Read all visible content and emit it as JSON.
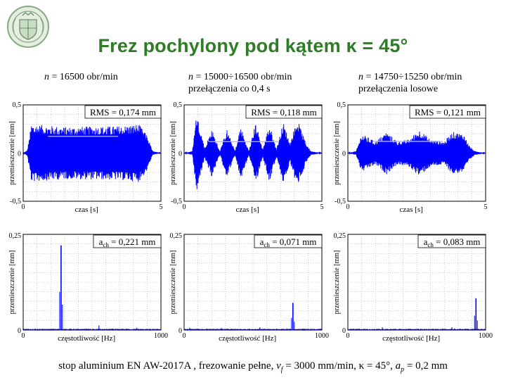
{
  "title": "Frez pochylony pod kątem κ = 45°",
  "footer": "stop aluminium EN AW-2017A , frezowanie pełne, v",
  "footer_parts": {
    "text1": "stop aluminium EN AW-2017A , frezowanie pełne, ",
    "vf_var": "v",
    "vf_sub": "f",
    "text2": " = 3000 mm/min, κ = 45°, ",
    "ap_var": "a",
    "ap_sub": "p",
    "text3": " = 0,2 mm"
  },
  "columns": [
    {
      "n_var": "n",
      "n_value": " = 16500 obr/min",
      "n_line2": ""
    },
    {
      "n_var": "n",
      "n_value": " = 15000÷16500 obr/min",
      "n_line2": "przełączenia co 0,4 s"
    },
    {
      "n_var": "n",
      "n_value": " = 14750÷15250 obr/min",
      "n_line2": "przełączenia losowe"
    }
  ],
  "colors": {
    "title": "#2e7d26",
    "signal": "#0000ff",
    "rms_line": "#b4b4dc",
    "grid": "#b0b0b0"
  },
  "chart_data": [
    {
      "type": "line",
      "panel": "time",
      "column": 1,
      "annotation": "RMS = 0,174 mm",
      "rms_value": 0.174,
      "xlabel": "czas [s]",
      "ylabel": "przemieszczenie [mm]",
      "xlim": [
        0,
        5
      ],
      "ylim": [
        -0.5,
        0.5
      ],
      "xticks": [
        "0",
        "5"
      ],
      "yticks": [
        "-0,5",
        "0",
        "0,5"
      ],
      "grid": true,
      "signal_envelope": {
        "t": [
          0,
          0.15,
          0.3,
          1.5,
          3.5,
          4.2,
          4.5,
          4.7,
          5
        ],
        "amp": [
          0,
          0.03,
          0.3,
          0.27,
          0.28,
          0.3,
          0.18,
          0.02,
          0
        ]
      }
    },
    {
      "type": "line",
      "panel": "time",
      "column": 2,
      "annotation": "RMS = 0,118 mm",
      "rms_value": 0.118,
      "xlabel": "czas [s]",
      "ylabel": "przemieszczenie [mm]",
      "xlim": [
        0,
        5
      ],
      "ylim": [
        -0.5,
        0.5
      ],
      "xticks": [
        "0",
        "5"
      ],
      "yticks": [
        "-0,5",
        "0",
        "0,5"
      ],
      "grid": true,
      "signal_envelope": {
        "t": [
          0,
          0.3,
          0.45,
          0.75,
          1.0,
          1.3,
          1.55,
          1.85,
          2.05,
          2.35,
          2.6,
          2.85,
          3.1,
          3.35,
          3.6,
          3.85,
          4.1,
          4.4,
          4.6,
          5
        ],
        "amp": [
          0,
          0.02,
          0.42,
          0.05,
          0.25,
          0.02,
          0.25,
          0.02,
          0.28,
          0.02,
          0.32,
          0.04,
          0.3,
          0.04,
          0.32,
          0.1,
          0.36,
          0.12,
          0.02,
          0
        ]
      }
    },
    {
      "type": "line",
      "panel": "time",
      "column": 3,
      "annotation": "RMS = 0,121 mm",
      "rms_value": 0.121,
      "xlabel": "czas [s]",
      "ylabel": "przemieszczenie [mm]",
      "xlim": [
        0,
        5
      ],
      "ylim": [
        -0.5,
        0.5
      ],
      "xticks": [
        "0",
        "5"
      ],
      "yticks": [
        "-0,5",
        "0",
        "0,5"
      ],
      "grid": true,
      "signal_envelope": {
        "t": [
          0,
          0.3,
          0.5,
          1.0,
          1.4,
          1.8,
          2.2,
          2.6,
          3.0,
          3.5,
          3.8,
          4.2,
          4.4,
          4.6,
          5
        ],
        "amp": [
          0,
          0.02,
          0.2,
          0.12,
          0.22,
          0.12,
          0.14,
          0.24,
          0.14,
          0.12,
          0.22,
          0.2,
          0.08,
          0.02,
          0
        ]
      }
    },
    {
      "type": "line",
      "panel": "fft",
      "column": 1,
      "annotation": "a_ch = 0,221 mm",
      "annotation_var": "a",
      "annotation_sub": "ch",
      "annotation_value": " = 0,221 mm",
      "a_ch_value": 0.221,
      "xlabel": "częstotliwość [Hz]",
      "ylabel": "przemieszczenie [mm]",
      "xlim": [
        0,
        1000
      ],
      "ylim": [
        0,
        0.25
      ],
      "xticks": [
        "0",
        "1000"
      ],
      "yticks": [
        "0",
        "0,25"
      ],
      "grid": true,
      "peaks": [
        {
          "f": 275,
          "a": 0.221
        },
        {
          "f": 550,
          "a": 0.012
        },
        {
          "f": 825,
          "a": 0.006
        },
        {
          "f": 137,
          "a": 0.003
        }
      ]
    },
    {
      "type": "line",
      "panel": "fft",
      "column": 2,
      "annotation": "a_ch = 0,071 mm",
      "annotation_var": "a",
      "annotation_sub": "ch",
      "annotation_value": " = 0,071 mm",
      "a_ch_value": 0.071,
      "xlabel": "częstotliwość [Hz]",
      "ylabel": "przemieszczenie [mm]",
      "xlim": [
        0,
        1000
      ],
      "ylim": [
        0,
        0.25
      ],
      "xticks": [
        "0",
        "1000"
      ],
      "yticks": [
        "0",
        "0,25"
      ],
      "grid": true,
      "peaks": [
        {
          "f": 790,
          "a": 0.071
        },
        {
          "f": 550,
          "a": 0.007
        },
        {
          "f": 270,
          "a": 0.005
        },
        {
          "f": 40,
          "a": 0.006
        },
        {
          "f": 130,
          "a": 0.003
        }
      ]
    },
    {
      "type": "line",
      "panel": "fft",
      "column": 3,
      "annotation": "a_ch = 0,083 mm",
      "annotation_var": "a",
      "annotation_sub": "ch",
      "annotation_value": " = 0,083 mm",
      "a_ch_value": 0.083,
      "xlabel": "częstotliwość [Hz]",
      "ylabel": "przemieszczenie [mm]",
      "xlim": [
        0,
        1000
      ],
      "ylim": [
        0,
        0.25
      ],
      "xticks": [
        "0",
        "1000"
      ],
      "yticks": [
        "0",
        "0,25"
      ],
      "grid": true,
      "peaks": [
        {
          "f": 930,
          "a": 0.083
        },
        {
          "f": 250,
          "a": 0.007
        },
        {
          "f": 755,
          "a": 0.007
        },
        {
          "f": 505,
          "a": 0.003
        }
      ]
    }
  ]
}
